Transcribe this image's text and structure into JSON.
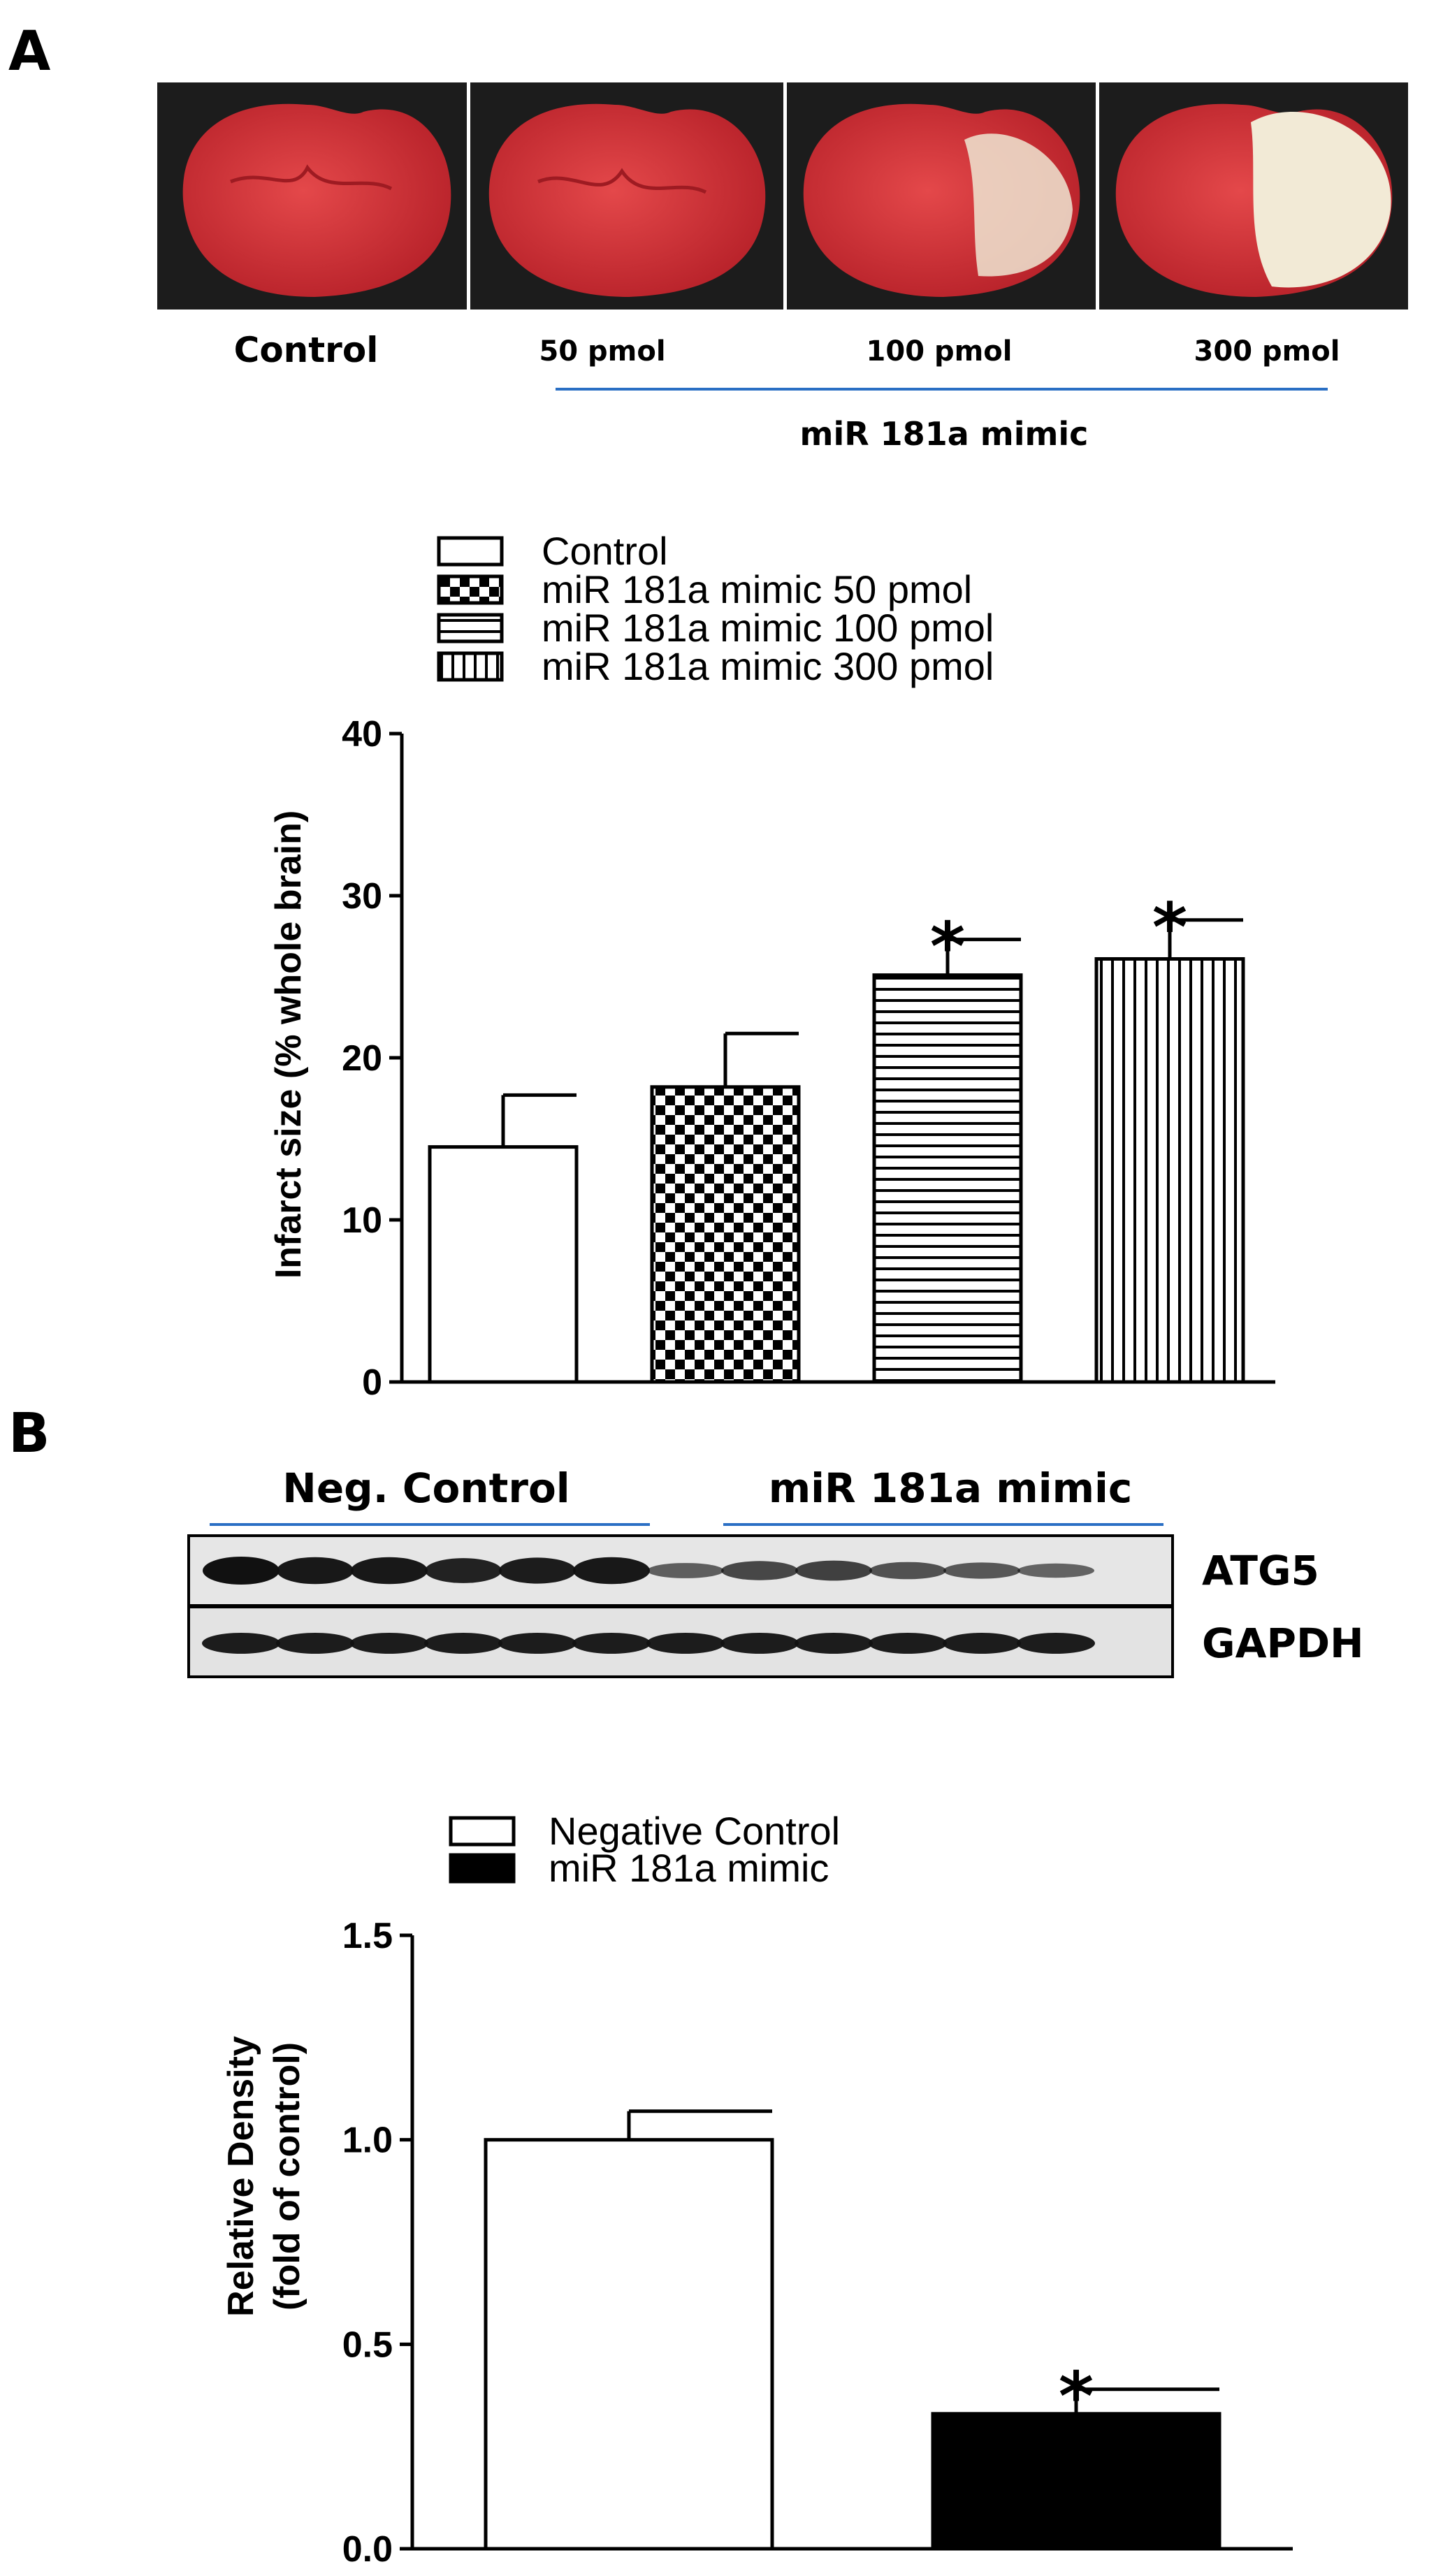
{
  "panel_a": {
    "letter": "A",
    "image_labels": [
      "Control",
      "50 pmol",
      "100 pmol",
      "300 pmol"
    ],
    "group_label": "miR 181a mimic"
  },
  "panel_b": {
    "letter": "B",
    "blot_groups": [
      "Neg. Control",
      "miR 181a mimic"
    ],
    "blot_rows": [
      "ATG5",
      "GAPDH"
    ]
  },
  "colors": {
    "tissue": "#d8363a",
    "infarct": "#f2ead6",
    "band": "#111111",
    "bar_fill_b": "#000000",
    "blue_line": "#2a6fc4"
  },
  "chart_data": [
    {
      "type": "bar",
      "title": "",
      "xlabel": "",
      "ylabel": "Infarct size (% whole brain)",
      "ylim": [
        0,
        40
      ],
      "yticks": [
        "0",
        "10",
        "20",
        "30",
        "40"
      ],
      "legend_position": "top",
      "series": [
        {
          "name": "Control",
          "value": 14.5,
          "error": 3.2,
          "pattern": "open",
          "significant": false
        },
        {
          "name": "miR 181a mimic 50 pmol",
          "value": 18.2,
          "error": 3.3,
          "pattern": "checker",
          "significant": false
        },
        {
          "name": "miR 181a mimic 100 pmol",
          "value": 25.1,
          "error": 2.2,
          "pattern": "horizontal-lines",
          "significant": true
        },
        {
          "name": "miR 181a mimic 300 pmol",
          "value": 26.1,
          "error": 2.4,
          "pattern": "vertical-lines",
          "significant": true
        }
      ],
      "significance_mark": "*"
    },
    {
      "type": "bar",
      "title": "",
      "xlabel": "",
      "ylabel": "Relative Density",
      "ylabel2": "(fold of control)",
      "ylim": [
        0,
        1.5
      ],
      "yticks": [
        "0.0",
        "0.5",
        "1.0",
        "1.5"
      ],
      "legend_position": "top",
      "series": [
        {
          "name": "Negative Control",
          "value": 1.0,
          "error": 0.07,
          "pattern": "open",
          "significant": false
        },
        {
          "name": "miR 181a mimic",
          "value": 0.33,
          "error": 0.06,
          "pattern": "solid",
          "significant": true
        }
      ],
      "significance_mark": "*"
    }
  ]
}
